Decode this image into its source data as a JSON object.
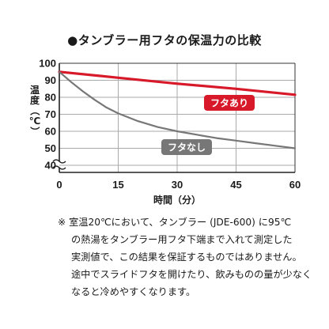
{
  "chart_data": {
    "type": "line",
    "title": "●タンブラー用フタの保温力の比較",
    "xlabel": "時間（分）",
    "ylabel": [
      "温",
      "度",
      "（",
      "℃",
      "）"
    ],
    "x_ticks": [
      0,
      15,
      30,
      45,
      60
    ],
    "y_ticks": [
      40,
      50,
      60,
      70,
      80,
      90,
      100
    ],
    "xlim": [
      0,
      60
    ],
    "ylim": [
      35,
      100
    ],
    "axis_break": "y",
    "grid": true,
    "series": [
      {
        "name": "フタあり",
        "color": "#d7192a",
        "x": [
          0,
          15,
          30,
          45,
          60
        ],
        "values": [
          95,
          91.5,
          88,
          85,
          81.5
        ]
      },
      {
        "name": "フタなし",
        "color": "#777777",
        "x": [
          0,
          3,
          6,
          9,
          12,
          15,
          20,
          25,
          30,
          35,
          40,
          45,
          50,
          55,
          60
        ],
        "values": [
          95,
          89,
          83.5,
          78.5,
          74,
          70.5,
          66,
          62.5,
          60,
          58,
          56,
          54.5,
          53,
          51.5,
          50
        ]
      }
    ]
  },
  "footnote": {
    "lines": [
      "※ 室温20℃において、タンブラー (JDE-600) に95℃",
      "の熱湯をタンブラー用フタ下端まで入れて測定した",
      "実測値で、この結果を保証するものではありません。",
      "途中でスライドフタを開けたり、飲みものの量が少なく",
      "なると冷めやすくなります。"
    ]
  }
}
